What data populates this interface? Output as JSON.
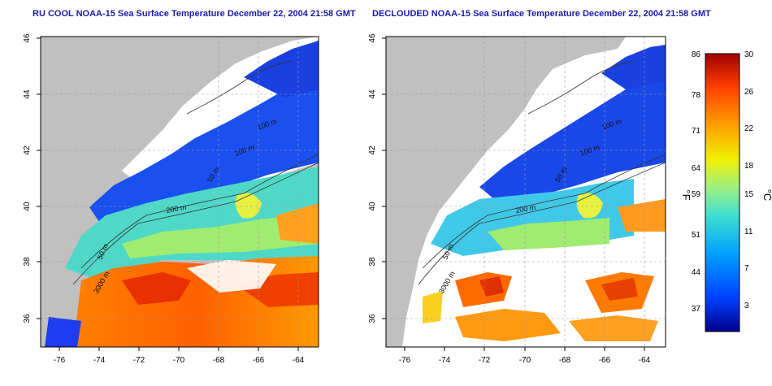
{
  "left_map": {
    "title": "RU COOL NOAA-15 Sea Surface Temperature December 22, 2004 21:58 GMT",
    "lon_ticks": [
      "-76",
      "-74",
      "-72",
      "-70",
      "-68",
      "-66",
      "-64"
    ],
    "lat_ticks": [
      "46",
      "44",
      "42",
      "40",
      "38",
      "36"
    ],
    "contour_labels": [
      "100 m",
      "100 m",
      "50 m",
      "200 m",
      "50 m",
      "3000 m"
    ]
  },
  "right_map": {
    "title": "DECLOUDED NOAA-15 Sea Surface Temperature December 22, 2004 21:58 GMT",
    "lon_ticks": [
      "-76",
      "-74",
      "-72",
      "-70",
      "-68",
      "-66",
      "-64"
    ],
    "lat_ticks": [
      "46",
      "44",
      "42",
      "40",
      "38",
      "36"
    ],
    "contour_labels": [
      "100 m",
      "100 m",
      "50 m",
      "200 m",
      "50 m",
      "3000 m"
    ]
  },
  "colorbar": {
    "fahrenheit_unit": "°F",
    "celsius_unit": "°C",
    "fahrenheit_ticks": [
      "86",
      "78",
      "71",
      "64",
      "59",
      "51",
      "44",
      "37"
    ],
    "celsius_ticks": [
      "30",
      "26",
      "22",
      "18",
      "15",
      "11",
      "7",
      "3"
    ],
    "color_stops": [
      "#00008c",
      "#0040ff",
      "#00a0ff",
      "#40e0d0",
      "#a0f080",
      "#f0f000",
      "#ffa000",
      "#ff4000",
      "#a00000"
    ]
  },
  "colors": {
    "land": "#c0c0c0",
    "cloud": "#ffffff",
    "title": "#1a1aa8"
  }
}
